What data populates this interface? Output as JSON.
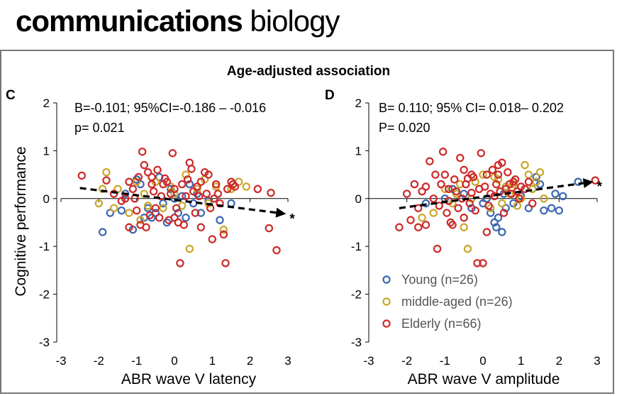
{
  "header": {
    "brand_bold": "communications",
    "brand_regular": "biology"
  },
  "figure_title": "Age-adjusted association",
  "colors": {
    "Young": "#3b66b0",
    "middle-aged": "#c9a629",
    "Elderly": "#cc2a2a",
    "trend": "#000000"
  },
  "chart_data": [
    {
      "panel": "C",
      "type": "scatter",
      "xlabel": "ABR wave V latency",
      "ylabel": "Cognitive performance",
      "xlim": [
        -3,
        3
      ],
      "ylim": [
        -3,
        2
      ],
      "xticks": [
        -3,
        -2,
        -1,
        0,
        1,
        2,
        3
      ],
      "yticks": [
        -3,
        -2,
        -1,
        0,
        1,
        2
      ],
      "annotation_line1": "B=-0.101; 95%CI=-0.186 – -0.016",
      "annotation_line2": "p= 0.021",
      "significance": "*",
      "trend": {
        "x": [
          -2.5,
          2.95
        ],
        "y": [
          0.22,
          -0.32
        ]
      },
      "series": [
        {
          "name": "Young",
          "points": [
            [
              -1.9,
              -0.7
            ],
            [
              -1.7,
              -0.3
            ],
            [
              -1.4,
              -0.25
            ],
            [
              -1.1,
              -0.65
            ],
            [
              -1.0,
              0.4
            ],
            [
              -0.9,
              0.3
            ],
            [
              -0.7,
              -0.2
            ],
            [
              -0.6,
              -0.4
            ],
            [
              -0.5,
              -0.3
            ],
            [
              -0.4,
              0.45
            ],
            [
              -0.3,
              -0.1
            ],
            [
              -0.2,
              -0.5
            ],
            [
              0.0,
              0.0
            ],
            [
              0.1,
              -0.3
            ],
            [
              0.3,
              -0.4
            ],
            [
              0.4,
              0.3
            ],
            [
              0.5,
              -0.1
            ],
            [
              0.7,
              -0.3
            ],
            [
              0.9,
              -0.05
            ],
            [
              1.2,
              -0.45
            ],
            [
              1.5,
              -0.1
            ],
            [
              -1.3,
              0.1
            ],
            [
              -0.8,
              -0.4
            ],
            [
              0.2,
              0.05
            ],
            [
              0.6,
              0.1
            ],
            [
              -0.1,
              0.2
            ]
          ]
        },
        {
          "name": "middle-aged",
          "points": [
            [
              -2.0,
              -0.1
            ],
            [
              -1.8,
              0.55
            ],
            [
              -1.6,
              -0.2
            ],
            [
              -1.5,
              0.2
            ],
            [
              -1.2,
              -0.3
            ],
            [
              -1.0,
              0.35
            ],
            [
              -0.9,
              -0.45
            ],
            [
              -0.8,
              0.1
            ],
            [
              -0.7,
              -0.15
            ],
            [
              -0.5,
              0.35
            ],
            [
              -0.3,
              -0.2
            ],
            [
              -0.1,
              0.25
            ],
            [
              0.0,
              0.1
            ],
            [
              0.2,
              -0.15
            ],
            [
              0.3,
              0.5
            ],
            [
              0.4,
              -1.05
            ],
            [
              0.6,
              0.2
            ],
            [
              0.8,
              0.4
            ],
            [
              0.9,
              -0.1
            ],
            [
              1.1,
              0.25
            ],
            [
              1.3,
              -0.65
            ],
            [
              1.5,
              0.2
            ],
            [
              1.7,
              0.35
            ],
            [
              1.9,
              0.25
            ],
            [
              -1.9,
              0.2
            ],
            [
              0.1,
              -0.5
            ]
          ]
        },
        {
          "name": "Elderly",
          "points": [
            [
              -2.45,
              0.48
            ],
            [
              -1.8,
              0.38
            ],
            [
              -1.6,
              0.1
            ],
            [
              -1.4,
              -0.05
            ],
            [
              -1.3,
              0.0
            ],
            [
              -1.2,
              0.35
            ],
            [
              -1.1,
              0.2
            ],
            [
              -1.05,
              0.0
            ],
            [
              -1.0,
              -0.25
            ],
            [
              -0.95,
              0.45
            ],
            [
              -0.9,
              -0.55
            ],
            [
              -0.85,
              0.98
            ],
            [
              -0.8,
              0.7
            ],
            [
              -0.75,
              -0.6
            ],
            [
              -0.7,
              0.55
            ],
            [
              -0.65,
              -0.35
            ],
            [
              -0.6,
              0.3
            ],
            [
              -0.55,
              0.15
            ],
            [
              -0.5,
              -0.2
            ],
            [
              -0.45,
              0.6
            ],
            [
              -0.4,
              -0.4
            ],
            [
              -0.35,
              0.05
            ],
            [
              -0.3,
              0.3
            ],
            [
              -0.25,
              0.42
            ],
            [
              -0.2,
              0.35
            ],
            [
              -0.15,
              -0.45
            ],
            [
              -0.1,
              0.1
            ],
            [
              -0.05,
              0.95
            ],
            [
              0.0,
              0.2
            ],
            [
              0.05,
              -0.2
            ],
            [
              0.1,
              -0.5
            ],
            [
              0.15,
              -1.35
            ],
            [
              0.2,
              0.3
            ],
            [
              0.25,
              -0.55
            ],
            [
              0.3,
              0.05
            ],
            [
              0.35,
              0.4
            ],
            [
              0.4,
              0.75
            ],
            [
              0.45,
              0.62
            ],
            [
              0.5,
              0.15
            ],
            [
              0.55,
              -0.3
            ],
            [
              0.6,
              0.25
            ],
            [
              0.65,
              0.05
            ],
            [
              0.7,
              0.35
            ],
            [
              0.8,
              0.55
            ],
            [
              0.85,
              0.1
            ],
            [
              0.9,
              0.5
            ],
            [
              0.95,
              -0.2
            ],
            [
              1.0,
              -0.85
            ],
            [
              1.05,
              0.0
            ],
            [
              1.1,
              0.3
            ],
            [
              1.15,
              0.1
            ],
            [
              1.2,
              -0.1
            ],
            [
              1.3,
              -0.75
            ],
            [
              1.35,
              -1.35
            ],
            [
              1.4,
              0.2
            ],
            [
              1.5,
              0.35
            ],
            [
              1.55,
              0.3
            ],
            [
              1.6,
              0.25
            ],
            [
              2.2,
              0.2
            ],
            [
              2.5,
              -0.62
            ],
            [
              2.55,
              0.12
            ],
            [
              2.7,
              -1.08
            ],
            [
              -0.6,
              0.45
            ],
            [
              0.0,
              -0.4
            ],
            [
              0.7,
              -0.6
            ],
            [
              -1.2,
              -0.6
            ]
          ]
        }
      ]
    },
    {
      "panel": "D",
      "type": "scatter",
      "xlabel": "ABR wave V amplitude",
      "ylabel": "",
      "xlim": [
        -3,
        3
      ],
      "ylim": [
        -3,
        2
      ],
      "xticks": [
        -3,
        -2,
        -1,
        0,
        1,
        2,
        3
      ],
      "yticks": [
        -3,
        -2,
        -1,
        0,
        1,
        2
      ],
      "annotation_line1": "B= 0.110; 95% CI= 0.018– 0.202",
      "annotation_line2": "P= 0.020",
      "significance": "*",
      "trend": {
        "x": [
          -2.2,
          2.9
        ],
        "y": [
          -0.2,
          0.35
        ]
      },
      "series": [
        {
          "name": "Young",
          "points": [
            [
              -1.5,
              -0.1
            ],
            [
              -1.0,
              0.0
            ],
            [
              -0.8,
              0.2
            ],
            [
              -0.5,
              0.1
            ],
            [
              -0.3,
              -0.2
            ],
            [
              0.0,
              -0.1
            ],
            [
              0.2,
              -0.3
            ],
            [
              0.3,
              -0.5
            ],
            [
              0.35,
              -0.6
            ],
            [
              0.4,
              -0.4
            ],
            [
              0.5,
              -0.7
            ],
            [
              0.55,
              0.1
            ],
            [
              0.6,
              -0.2
            ],
            [
              0.8,
              -0.1
            ],
            [
              1.0,
              0.05
            ],
            [
              1.2,
              -0.2
            ],
            [
              1.3,
              0.2
            ],
            [
              1.4,
              0.45
            ],
            [
              1.5,
              0.3
            ],
            [
              1.6,
              -0.25
            ],
            [
              1.8,
              -0.2
            ],
            [
              1.9,
              0.1
            ],
            [
              2.0,
              -0.25
            ],
            [
              2.1,
              0.05
            ],
            [
              2.5,
              0.35
            ],
            [
              0.1,
              0.0
            ]
          ]
        },
        {
          "name": "middle-aged",
          "points": [
            [
              -1.6,
              -0.4
            ],
            [
              -1.3,
              -0.3
            ],
            [
              -1.0,
              0.2
            ],
            [
              -0.8,
              -0.1
            ],
            [
              -0.6,
              0.3
            ],
            [
              -0.5,
              -0.6
            ],
            [
              -0.4,
              -1.05
            ],
            [
              -0.3,
              0.0
            ],
            [
              -0.2,
              0.35
            ],
            [
              0.0,
              0.5
            ],
            [
              0.2,
              -0.2
            ],
            [
              0.4,
              0.4
            ],
            [
              0.5,
              -0.1
            ],
            [
              0.6,
              0.25
            ],
            [
              0.7,
              0.1
            ],
            [
              0.9,
              -0.15
            ],
            [
              1.0,
              0.0
            ],
            [
              1.1,
              0.7
            ],
            [
              1.2,
              0.5
            ],
            [
              1.3,
              0.2
            ],
            [
              1.4,
              0.35
            ],
            [
              1.5,
              0.55
            ],
            [
              1.6,
              0.0
            ],
            [
              0.8,
              0.3
            ],
            [
              -0.7,
              0.1
            ],
            [
              0.3,
              0.45
            ]
          ]
        },
        {
          "name": "Elderly",
          "points": [
            [
              -2.2,
              -0.6
            ],
            [
              -2.0,
              0.1
            ],
            [
              -1.9,
              -0.45
            ],
            [
              -1.8,
              0.3
            ],
            [
              -1.7,
              -0.2
            ],
            [
              -1.6,
              0.15
            ],
            [
              -1.5,
              -0.55
            ],
            [
              -1.4,
              0.78
            ],
            [
              -1.3,
              0.0
            ],
            [
              -1.2,
              -1.05
            ],
            [
              -1.15,
              -0.15
            ],
            [
              -1.1,
              0.3
            ],
            [
              -1.05,
              0.98
            ],
            [
              -1.0,
              0.5
            ],
            [
              -0.95,
              -0.3
            ],
            [
              -0.9,
              0.2
            ],
            [
              -0.85,
              -0.5
            ],
            [
              -0.8,
              -0.55
            ],
            [
              -0.75,
              0.4
            ],
            [
              -0.7,
              0.15
            ],
            [
              -0.65,
              -0.2
            ],
            [
              -0.6,
              0.85
            ],
            [
              -0.55,
              0.0
            ],
            [
              -0.5,
              0.6
            ],
            [
              -0.45,
              0.3
            ],
            [
              -0.4,
              0.42
            ],
            [
              -0.35,
              -0.1
            ],
            [
              -0.3,
              0.12
            ],
            [
              -0.25,
              0.45
            ],
            [
              -0.2,
              -0.25
            ],
            [
              -0.15,
              -1.35
            ],
            [
              -0.1,
              0.2
            ],
            [
              -0.05,
              0.95
            ],
            [
              0.0,
              -1.35
            ],
            [
              0.05,
              0.25
            ],
            [
              0.1,
              0.5
            ],
            [
              0.15,
              -0.15
            ],
            [
              0.2,
              0.1
            ],
            [
              0.25,
              0.6
            ],
            [
              0.3,
              0.05
            ],
            [
              0.35,
              0.3
            ],
            [
              0.4,
              0.7
            ],
            [
              0.45,
              0.15
            ],
            [
              0.5,
              0.75
            ],
            [
              0.55,
              -0.3
            ],
            [
              0.6,
              0.2
            ],
            [
              0.65,
              0.55
            ],
            [
              0.7,
              0.3
            ],
            [
              0.75,
              0.1
            ],
            [
              0.8,
              0.35
            ],
            [
              0.85,
              0.4
            ],
            [
              0.9,
              0.15
            ],
            [
              0.95,
              0.0
            ],
            [
              1.0,
              0.25
            ],
            [
              1.1,
              0.2
            ],
            [
              1.2,
              0.35
            ],
            [
              1.3,
              -0.1
            ],
            [
              2.95,
              0.38
            ],
            [
              -1.7,
              -0.6
            ],
            [
              -1.25,
              0.5
            ],
            [
              -0.9,
              -0.05
            ],
            [
              -0.5,
              -0.4
            ],
            [
              0.1,
              -0.7
            ],
            [
              0.4,
              0.5
            ],
            [
              -0.3,
              0.5
            ],
            [
              -1.5,
              0.25
            ]
          ]
        }
      ]
    }
  ],
  "legend": {
    "placement": "lower-right of panel D",
    "items": [
      {
        "label": "Young (n=26)",
        "key": "Young"
      },
      {
        "label": "middle-aged (n=26)",
        "key": "middle-aged"
      },
      {
        "label": "Elderly (n=66)",
        "key": "Elderly"
      }
    ]
  }
}
